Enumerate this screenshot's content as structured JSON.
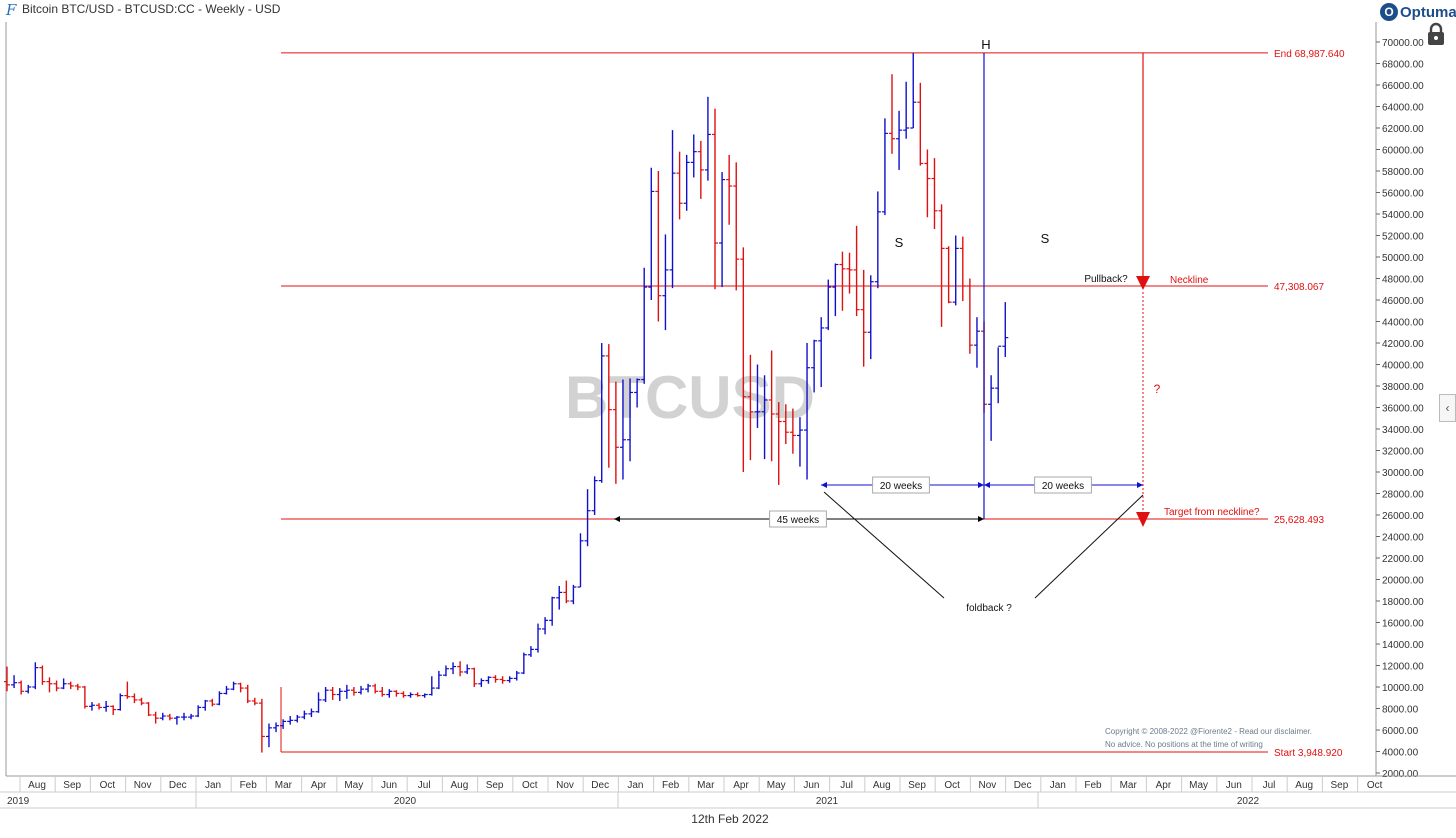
{
  "header": {
    "title": "Bitcoin BTC/USD - BTCUSD:CC - Weekly - USD",
    "brand": "Optuma",
    "brand_mark": "O"
  },
  "footer": {
    "date": "12th Feb 2022"
  },
  "side_tab_icon": "‹",
  "colors": {
    "up": "#1010cc",
    "down": "#e01010",
    "level": "#e01010",
    "annotation": "#111111",
    "watermark": "#c8c8c8"
  },
  "icons": [
    "optuma-logo-icon",
    "lock-icon",
    "collapse-panel-icon"
  ],
  "chart_data": {
    "type": "ohlc-bar",
    "timeframe": "Weekly",
    "watermark": "BTCUSD",
    "ylim": [
      2000,
      70000
    ],
    "y_tick_step": 2000,
    "y_tick_labels": [
      "2000.00",
      "4000.00",
      "6000.00",
      "8000.00",
      "10000.00",
      "12000.00",
      "14000.00",
      "16000.00",
      "18000.00",
      "20000.00",
      "22000.00",
      "24000.00",
      "26000.00",
      "28000.00",
      "30000.00",
      "32000.00",
      "34000.00",
      "36000.00",
      "38000.00",
      "40000.00",
      "42000.00",
      "44000.00",
      "46000.00",
      "48000.00",
      "50000.00",
      "52000.00",
      "54000.00",
      "56000.00",
      "58000.00",
      "60000.00",
      "62000.00",
      "64000.00",
      "66000.00",
      "68000.00",
      "70000.00"
    ],
    "month_labels": [
      "Aug",
      "Sep",
      "Oct",
      "Nov",
      "Dec",
      "Jan",
      "Feb",
      "Mar",
      "Apr",
      "May",
      "Jun",
      "Jul",
      "Aug",
      "Sep",
      "Oct",
      "Nov",
      "Dec",
      "Jan",
      "Feb",
      "Mar",
      "Apr",
      "May",
      "Jun",
      "Jul",
      "Aug",
      "Sep",
      "Oct",
      "Nov",
      "Dec",
      "Jan",
      "Feb",
      "Mar",
      "Apr",
      "May",
      "Jun",
      "Jul",
      "Aug",
      "Sep",
      "Oct"
    ],
    "year_labels": [
      "2019",
      "2020",
      "2021",
      "2022"
    ],
    "levels": [
      {
        "label": "End 68,987.640",
        "value": 68987.64
      },
      {
        "label": "47,308.067",
        "value": 47308.067,
        "note": "Neckline"
      },
      {
        "label": "25,628.493",
        "value": 25628.493,
        "note": "Target from neckline?"
      },
      {
        "label": "Start 3,948.920",
        "value": 3948.92
      }
    ],
    "pattern_labels": {
      "left_shoulder": "S",
      "head": "H",
      "right_shoulder": "S"
    },
    "annotations": {
      "pullback": "Pullback?",
      "question": "?",
      "foldback": "foldback ?",
      "weeks_45": "45 weeks",
      "weeks_20_left": "20 weeks",
      "weeks_20_right": "20 weeks"
    },
    "copyright_lines": [
      "Copyright © 2008-2022 @Fiorente2 - Read our disclaimer.",
      "No advice. No positions at the time of writing"
    ],
    "bars": [
      {
        "o": 10500,
        "h": 11900,
        "l": 9600,
        "c": 10200
      },
      {
        "o": 10200,
        "h": 11100,
        "l": 9900,
        "c": 10400
      },
      {
        "o": 10400,
        "h": 10600,
        "l": 9300,
        "c": 9600
      },
      {
        "o": 9600,
        "h": 10200,
        "l": 9400,
        "c": 10000
      },
      {
        "o": 10000,
        "h": 12300,
        "l": 9800,
        "c": 11800
      },
      {
        "o": 11800,
        "h": 12000,
        "l": 10200,
        "c": 10500
      },
      {
        "o": 10500,
        "h": 10900,
        "l": 9500,
        "c": 10300
      },
      {
        "o": 10300,
        "h": 10600,
        "l": 9600,
        "c": 9900
      },
      {
        "o": 9900,
        "h": 10800,
        "l": 9800,
        "c": 10300
      },
      {
        "o": 10300,
        "h": 10500,
        "l": 9800,
        "c": 10100
      },
      {
        "o": 10100,
        "h": 10300,
        "l": 9700,
        "c": 10000
      },
      {
        "o": 10000,
        "h": 10100,
        "l": 8000,
        "c": 8200
      },
      {
        "o": 8200,
        "h": 8600,
        "l": 7800,
        "c": 8300
      },
      {
        "o": 8300,
        "h": 8500,
        "l": 7900,
        "c": 8100
      },
      {
        "o": 8100,
        "h": 8700,
        "l": 7700,
        "c": 8200
      },
      {
        "o": 8200,
        "h": 8300,
        "l": 7400,
        "c": 7900
      },
      {
        "o": 7900,
        "h": 9400,
        "l": 7800,
        "c": 9200
      },
      {
        "o": 9200,
        "h": 10500,
        "l": 8900,
        "c": 9100
      },
      {
        "o": 9100,
        "h": 9400,
        "l": 8500,
        "c": 8800
      },
      {
        "o": 8800,
        "h": 9000,
        "l": 8300,
        "c": 8500
      },
      {
        "o": 8500,
        "h": 8600,
        "l": 7300,
        "c": 7400
      },
      {
        "o": 7400,
        "h": 7700,
        "l": 6600,
        "c": 7100
      },
      {
        "o": 7100,
        "h": 7600,
        "l": 6900,
        "c": 7300
      },
      {
        "o": 7300,
        "h": 7500,
        "l": 6900,
        "c": 7100
      },
      {
        "o": 7100,
        "h": 7300,
        "l": 6500,
        "c": 7200
      },
      {
        "o": 7200,
        "h": 7600,
        "l": 6900,
        "c": 7200
      },
      {
        "o": 7200,
        "h": 7500,
        "l": 7000,
        "c": 7300
      },
      {
        "o": 7300,
        "h": 8300,
        "l": 7200,
        "c": 8100
      },
      {
        "o": 8100,
        "h": 8800,
        "l": 7800,
        "c": 8700
      },
      {
        "o": 8700,
        "h": 8900,
        "l": 8200,
        "c": 8400
      },
      {
        "o": 8400,
        "h": 9600,
        "l": 8300,
        "c": 9400
      },
      {
        "o": 9400,
        "h": 10100,
        "l": 9300,
        "c": 9800
      },
      {
        "o": 9800,
        "h": 10500,
        "l": 9700,
        "c": 10300
      },
      {
        "o": 10300,
        "h": 10400,
        "l": 9500,
        "c": 9900
      },
      {
        "o": 9900,
        "h": 10200,
        "l": 8500,
        "c": 8700
      },
      {
        "o": 8700,
        "h": 9000,
        "l": 8300,
        "c": 8500
      },
      {
        "o": 8500,
        "h": 8900,
        "l": 3900,
        "c": 5400
      },
      {
        "o": 5400,
        "h": 6600,
        "l": 4400,
        "c": 6200
      },
      {
        "o": 6200,
        "h": 6700,
        "l": 5800,
        "c": 6400
      },
      {
        "o": 6400,
        "h": 7000,
        "l": 6100,
        "c": 6800
      },
      {
        "o": 6800,
        "h": 7300,
        "l": 6500,
        "c": 6900
      },
      {
        "o": 6900,
        "h": 7400,
        "l": 6700,
        "c": 7200
      },
      {
        "o": 7200,
        "h": 7800,
        "l": 7000,
        "c": 7500
      },
      {
        "o": 7500,
        "h": 8000,
        "l": 7200,
        "c": 7700
      },
      {
        "o": 7700,
        "h": 9500,
        "l": 7600,
        "c": 8800
      },
      {
        "o": 8800,
        "h": 10000,
        "l": 8600,
        "c": 9700
      },
      {
        "o": 9700,
        "h": 10000,
        "l": 8800,
        "c": 9300
      },
      {
        "o": 9300,
        "h": 9900,
        "l": 8700,
        "c": 9600
      },
      {
        "o": 9600,
        "h": 10200,
        "l": 8900,
        "c": 9700
      },
      {
        "o": 9700,
        "h": 10000,
        "l": 9200,
        "c": 9500
      },
      {
        "o": 9500,
        "h": 10100,
        "l": 9300,
        "c": 9800
      },
      {
        "o": 9800,
        "h": 10300,
        "l": 9500,
        "c": 10100
      },
      {
        "o": 10100,
        "h": 10300,
        "l": 9400,
        "c": 9600
      },
      {
        "o": 9600,
        "h": 10000,
        "l": 9100,
        "c": 9300
      },
      {
        "o": 9300,
        "h": 9800,
        "l": 9000,
        "c": 9600
      },
      {
        "o": 9600,
        "h": 9700,
        "l": 9100,
        "c": 9400
      },
      {
        "o": 9400,
        "h": 9600,
        "l": 9000,
        "c": 9200
      },
      {
        "o": 9200,
        "h": 9500,
        "l": 9000,
        "c": 9300
      },
      {
        "o": 9300,
        "h": 9500,
        "l": 9100,
        "c": 9200
      },
      {
        "o": 9200,
        "h": 9400,
        "l": 9000,
        "c": 9300
      },
      {
        "o": 9300,
        "h": 11000,
        "l": 9200,
        "c": 9900
      },
      {
        "o": 9900,
        "h": 11500,
        "l": 9800,
        "c": 11100
      },
      {
        "o": 11100,
        "h": 12000,
        "l": 11000,
        "c": 11700
      },
      {
        "o": 11700,
        "h": 12300,
        "l": 11200,
        "c": 11900
      },
      {
        "o": 11900,
        "h": 12400,
        "l": 11000,
        "c": 11400
      },
      {
        "o": 11400,
        "h": 12100,
        "l": 11200,
        "c": 11700
      },
      {
        "o": 11700,
        "h": 11800,
        "l": 10000,
        "c": 10300
      },
      {
        "o": 10300,
        "h": 10800,
        "l": 10000,
        "c": 10600
      },
      {
        "o": 10600,
        "h": 11000,
        "l": 10300,
        "c": 10900
      },
      {
        "o": 10900,
        "h": 11100,
        "l": 10400,
        "c": 10700
      },
      {
        "o": 10700,
        "h": 11000,
        "l": 10300,
        "c": 10600
      },
      {
        "o": 10600,
        "h": 11000,
        "l": 10400,
        "c": 10800
      },
      {
        "o": 10800,
        "h": 11500,
        "l": 10600,
        "c": 11300
      },
      {
        "o": 11300,
        "h": 13200,
        "l": 11200,
        "c": 13000
      },
      {
        "o": 13000,
        "h": 13800,
        "l": 12800,
        "c": 13500
      },
      {
        "o": 13500,
        "h": 15900,
        "l": 13200,
        "c": 15400
      },
      {
        "o": 15400,
        "h": 16500,
        "l": 14900,
        "c": 16200
      },
      {
        "o": 16200,
        "h": 18400,
        "l": 15700,
        "c": 18300
      },
      {
        "o": 18300,
        "h": 19400,
        "l": 17200,
        "c": 18800
      },
      {
        "o": 18800,
        "h": 19900,
        "l": 17800,
        "c": 18000
      },
      {
        "o": 18000,
        "h": 19500,
        "l": 17700,
        "c": 19300
      },
      {
        "o": 19300,
        "h": 24300,
        "l": 19300,
        "c": 23600
      },
      {
        "o": 23600,
        "h": 28400,
        "l": 23100,
        "c": 26400
      },
      {
        "o": 26400,
        "h": 29600,
        "l": 26000,
        "c": 29200
      },
      {
        "o": 29200,
        "h": 42000,
        "l": 29000,
        "c": 40800
      },
      {
        "o": 40800,
        "h": 41900,
        "l": 30400,
        "c": 35800
      },
      {
        "o": 35800,
        "h": 38400,
        "l": 28900,
        "c": 32300
      },
      {
        "o": 32300,
        "h": 38600,
        "l": 29300,
        "c": 33000
      },
      {
        "o": 33000,
        "h": 38700,
        "l": 31000,
        "c": 37400
      },
      {
        "o": 37400,
        "h": 38700,
        "l": 36000,
        "c": 38600
      },
      {
        "o": 38600,
        "h": 49000,
        "l": 38200,
        "c": 47200
      },
      {
        "o": 47200,
        "h": 58300,
        "l": 46000,
        "c": 56100
      },
      {
        "o": 56100,
        "h": 58000,
        "l": 44000,
        "c": 46400
      },
      {
        "o": 46400,
        "h": 52100,
        "l": 43200,
        "c": 48800
      },
      {
        "o": 48800,
        "h": 61800,
        "l": 47100,
        "c": 57800
      },
      {
        "o": 57800,
        "h": 59800,
        "l": 53500,
        "c": 55000
      },
      {
        "o": 55000,
        "h": 59500,
        "l": 54300,
        "c": 58800
      },
      {
        "o": 58800,
        "h": 61400,
        "l": 57400,
        "c": 59800
      },
      {
        "o": 59800,
        "h": 60800,
        "l": 55400,
        "c": 58100
      },
      {
        "o": 58100,
        "h": 64900,
        "l": 57100,
        "c": 61400
      },
      {
        "o": 61400,
        "h": 63800,
        "l": 47000,
        "c": 51300
      },
      {
        "o": 51300,
        "h": 57900,
        "l": 47200,
        "c": 57200
      },
      {
        "o": 57200,
        "h": 59500,
        "l": 53000,
        "c": 56600
      },
      {
        "o": 56600,
        "h": 58800,
        "l": 46900,
        "c": 49800
      },
      {
        "o": 49800,
        "h": 50900,
        "l": 30000,
        "c": 37000
      },
      {
        "o": 37000,
        "h": 40900,
        "l": 31100,
        "c": 35600
      },
      {
        "o": 35600,
        "h": 40000,
        "l": 34100,
        "c": 35600
      },
      {
        "o": 35600,
        "h": 39000,
        "l": 31200,
        "c": 36700
      },
      {
        "o": 36700,
        "h": 41300,
        "l": 31000,
        "c": 35400
      },
      {
        "o": 35400,
        "h": 36500,
        "l": 28800,
        "c": 34700
      },
      {
        "o": 34700,
        "h": 36300,
        "l": 32600,
        "c": 33700
      },
      {
        "o": 33700,
        "h": 35900,
        "l": 31700,
        "c": 33400
      },
      {
        "o": 33400,
        "h": 35100,
        "l": 30500,
        "c": 33900
      },
      {
        "o": 33900,
        "h": 42000,
        "l": 29300,
        "c": 39700
      },
      {
        "o": 39700,
        "h": 42300,
        "l": 37400,
        "c": 42200
      },
      {
        "o": 42200,
        "h": 44400,
        "l": 37900,
        "c": 43400
      },
      {
        "o": 43400,
        "h": 47900,
        "l": 43200,
        "c": 47200
      },
      {
        "o": 47200,
        "h": 49400,
        "l": 44500,
        "c": 49300
      },
      {
        "o": 49300,
        "h": 50500,
        "l": 45000,
        "c": 48900
      },
      {
        "o": 48900,
        "h": 50400,
        "l": 46600,
        "c": 48800
      },
      {
        "o": 48800,
        "h": 52900,
        "l": 44500,
        "c": 45100
      },
      {
        "o": 45100,
        "h": 48800,
        "l": 39800,
        "c": 43000
      },
      {
        "o": 43000,
        "h": 48300,
        "l": 40500,
        "c": 47700
      },
      {
        "o": 47700,
        "h": 56100,
        "l": 47100,
        "c": 54200
      },
      {
        "o": 54200,
        "h": 62900,
        "l": 53900,
        "c": 61500
      },
      {
        "o": 61500,
        "h": 67000,
        "l": 59600,
        "c": 61000
      },
      {
        "o": 61000,
        "h": 63600,
        "l": 58100,
        "c": 61800
      },
      {
        "o": 61800,
        "h": 66300,
        "l": 61000,
        "c": 62000
      },
      {
        "o": 62000,
        "h": 68990,
        "l": 62000,
        "c": 64400
      },
      {
        "o": 64400,
        "h": 66200,
        "l": 58500,
        "c": 58700
      },
      {
        "o": 58700,
        "h": 60000,
        "l": 53700,
        "c": 57300
      },
      {
        "o": 57300,
        "h": 59200,
        "l": 52600,
        "c": 54300
      },
      {
        "o": 54300,
        "h": 54900,
        "l": 43500,
        "c": 50800
      },
      {
        "o": 50800,
        "h": 51000,
        "l": 45700,
        "c": 45800
      },
      {
        "o": 45800,
        "h": 52000,
        "l": 45500,
        "c": 50800
      },
      {
        "o": 50800,
        "h": 51900,
        "l": 45900,
        "c": 47300
      },
      {
        "o": 47300,
        "h": 48000,
        "l": 41000,
        "c": 41800
      },
      {
        "o": 41800,
        "h": 44400,
        "l": 39700,
        "c": 43100
      },
      {
        "o": 43100,
        "h": 44000,
        "l": 35500,
        "c": 36300
      },
      {
        "o": 36300,
        "h": 39000,
        "l": 32900,
        "c": 37800
      },
      {
        "o": 37800,
        "h": 41600,
        "l": 36400,
        "c": 41700
      },
      {
        "o": 41700,
        "h": 45800,
        "l": 40700,
        "c": 42500
      }
    ]
  }
}
